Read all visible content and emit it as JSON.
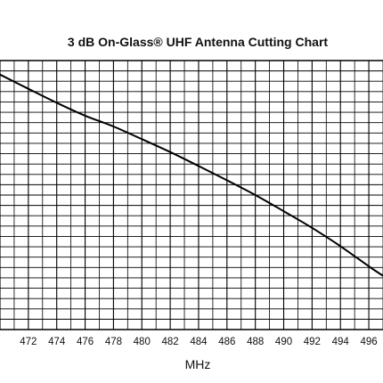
{
  "chart_data": {
    "type": "line",
    "title": "3 dB On-Glass® UHF Antenna Cutting Chart",
    "xlabel": "MHz",
    "ylabel": "",
    "x_ticks": [
      "472",
      "474",
      "476",
      "478",
      "480",
      "482",
      "484",
      "486",
      "488",
      "490",
      "492",
      "494",
      "496"
    ],
    "x_tick_values": [
      472,
      474,
      476,
      478,
      480,
      482,
      484,
      486,
      488,
      490,
      492,
      494,
      496
    ],
    "xlim": [
      470,
      497
    ],
    "grid": true,
    "legend": "none",
    "series": [
      {
        "x": [
          470,
          472,
          474,
          476,
          478,
          480,
          482,
          484,
          486,
          488,
          490,
          492,
          494,
          496,
          497
        ],
        "y_fraction_of_plot_height": [
          0.948,
          0.895,
          0.843,
          0.795,
          0.755,
          0.708,
          0.66,
          0.608,
          0.555,
          0.5,
          0.44,
          0.378,
          0.31,
          0.235,
          0.2
        ]
      }
    ],
    "colors": {
      "line": "#000000",
      "grid": "#000000",
      "background": "#ffffff"
    }
  }
}
